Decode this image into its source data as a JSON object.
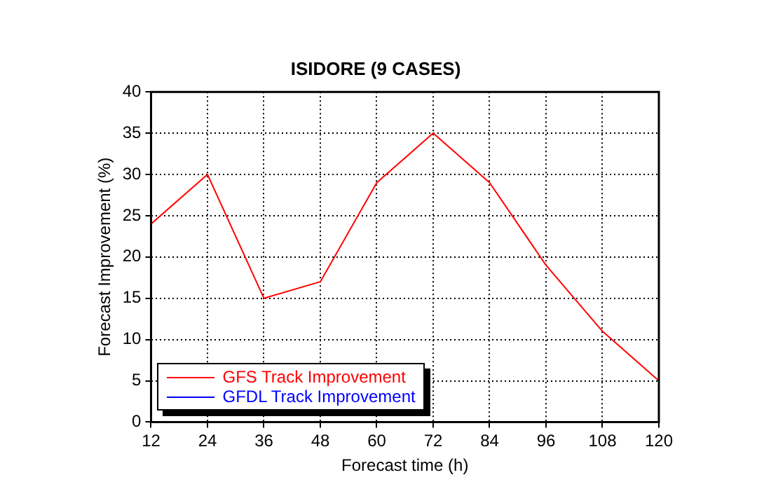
{
  "chart_data": {
    "type": "line",
    "title": "ISIDORE (9 CASES)",
    "xlabel": "Forecast time (h)",
    "ylabel": "Forecast Improvement (%)",
    "x": [
      12,
      24,
      36,
      48,
      60,
      72,
      84,
      96,
      108,
      120
    ],
    "series": [
      {
        "name": "GFS Track Improvement",
        "color": "#ff0000",
        "values": [
          24,
          30,
          15,
          17,
          29,
          35,
          29,
          19,
          11,
          5
        ]
      },
      {
        "name": "GFDL Track Improvement",
        "color": "#0000ff",
        "values": [
          null,
          null,
          null,
          null,
          null,
          null,
          null,
          null,
          null,
          null
        ]
      }
    ],
    "xlim": [
      12,
      120
    ],
    "xticks": [
      12,
      24,
      36,
      48,
      60,
      72,
      84,
      96,
      108,
      120
    ],
    "ylim": [
      0,
      40
    ],
    "yticks": [
      0,
      5,
      10,
      15,
      20,
      25,
      30,
      35,
      40
    ],
    "grid": true,
    "legend": "bottom left",
    "marker": "none",
    "line_style": "solid"
  }
}
